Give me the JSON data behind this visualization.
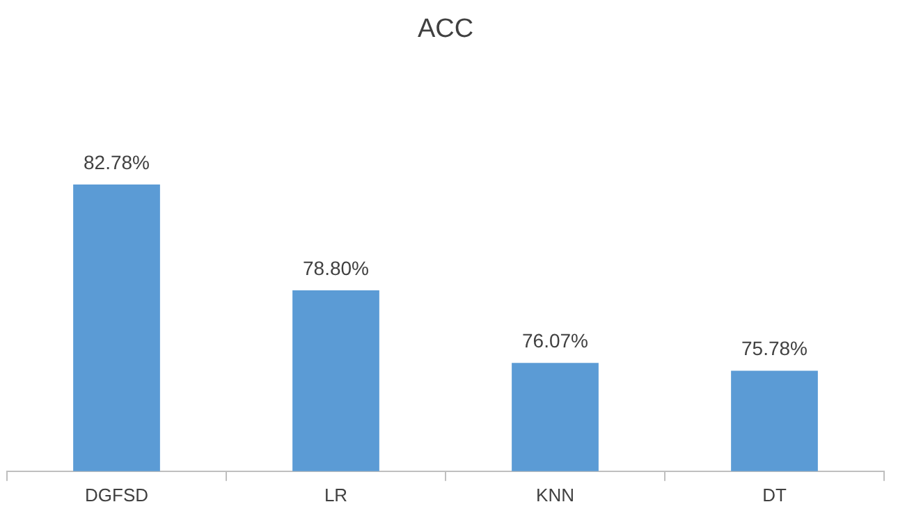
{
  "chart_data": {
    "type": "bar",
    "title": "ACC",
    "categories": [
      "DGFSD",
      "LR",
      "KNN",
      "DT"
    ],
    "values": [
      82.78,
      78.8,
      76.07,
      75.78
    ],
    "value_labels": [
      "82.78%",
      "78.80%",
      "76.07%",
      "75.78%"
    ],
    "color": "#5b9bd5",
    "tick_labels": "x",
    "grid": false,
    "legend": false
  }
}
